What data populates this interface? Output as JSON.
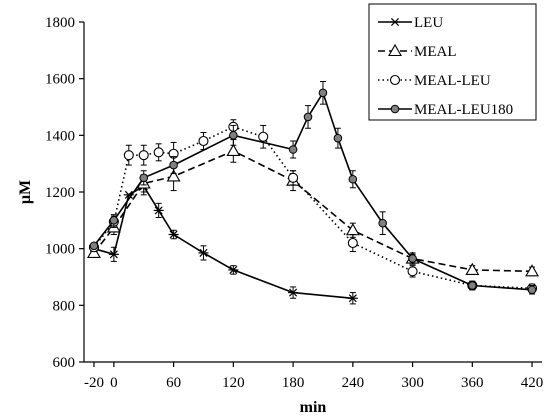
{
  "chart_data": {
    "type": "line",
    "xlabel": "min",
    "ylabel": "µM",
    "xlim": [
      -30,
      430
    ],
    "ylim": [
      600,
      1800
    ],
    "xticks": [
      -20,
      0,
      60,
      120,
      180,
      240,
      300,
      360,
      420
    ],
    "yticks": [
      600,
      800,
      1000,
      1200,
      1400,
      1600,
      1800
    ],
    "xtick_labels": [
      "-20",
      "0",
      "60",
      "120",
      "180",
      "240",
      "300",
      "360",
      "420"
    ],
    "ytick_labels": [
      "600",
      "800",
      "1000",
      "1200",
      "1400",
      "1600",
      "1800"
    ],
    "grid": false,
    "legend_position": "top-right",
    "series": [
      {
        "name": "LEU",
        "line_style": "solid",
        "marker": "star",
        "points": [
          [
            -20,
            1000
          ],
          [
            0,
            980
          ],
          [
            15,
            1190
          ],
          [
            30,
            1220
          ],
          [
            45,
            1135
          ],
          [
            60,
            1050
          ],
          [
            90,
            985
          ],
          [
            120,
            925
          ],
          [
            180,
            845
          ],
          [
            240,
            825
          ]
        ],
        "errors": [
          0,
          25,
          0,
          30,
          25,
          15,
          25,
          15,
          20,
          20
        ]
      },
      {
        "name": "MEAL",
        "line_style": "dashed",
        "marker": "triangle",
        "points": [
          [
            -20,
            985
          ],
          [
            0,
            1075
          ],
          [
            30,
            1230
          ],
          [
            60,
            1255
          ],
          [
            120,
            1345
          ],
          [
            180,
            1240
          ],
          [
            240,
            1065
          ],
          [
            300,
            965
          ],
          [
            360,
            925
          ],
          [
            420,
            920
          ]
        ],
        "errors": [
          0,
          25,
          30,
          50,
          40,
          35,
          25,
          15,
          15,
          15
        ]
      },
      {
        "name": "MEAL-LEU",
        "line_style": "dotted",
        "marker": "circle",
        "points": [
          [
            -20,
            1005
          ],
          [
            0,
            1095
          ],
          [
            15,
            1330
          ],
          [
            30,
            1330
          ],
          [
            45,
            1340
          ],
          [
            60,
            1335
          ],
          [
            90,
            1380
          ],
          [
            120,
            1430
          ],
          [
            150,
            1395
          ],
          [
            180,
            1250
          ],
          [
            240,
            1020
          ],
          [
            300,
            920
          ],
          [
            360,
            870
          ],
          [
            420,
            860
          ]
        ],
        "errors": [
          0,
          20,
          35,
          35,
          30,
          40,
          30,
          25,
          40,
          25,
          30,
          20,
          15,
          15
        ]
      },
      {
        "name": "MEAL-LEU180",
        "line_style": "solid",
        "marker": "filled-circle",
        "points": [
          [
            -20,
            1010
          ],
          [
            0,
            1100
          ],
          [
            30,
            1250
          ],
          [
            60,
            1295
          ],
          [
            120,
            1400
          ],
          [
            180,
            1350
          ],
          [
            195,
            1465
          ],
          [
            210,
            1550
          ],
          [
            225,
            1390
          ],
          [
            240,
            1245
          ],
          [
            270,
            1090
          ],
          [
            300,
            965
          ],
          [
            360,
            870
          ],
          [
            420,
            855
          ]
        ],
        "errors": [
          0,
          20,
          25,
          30,
          35,
          30,
          40,
          40,
          35,
          30,
          40,
          20,
          15,
          15
        ]
      }
    ]
  }
}
